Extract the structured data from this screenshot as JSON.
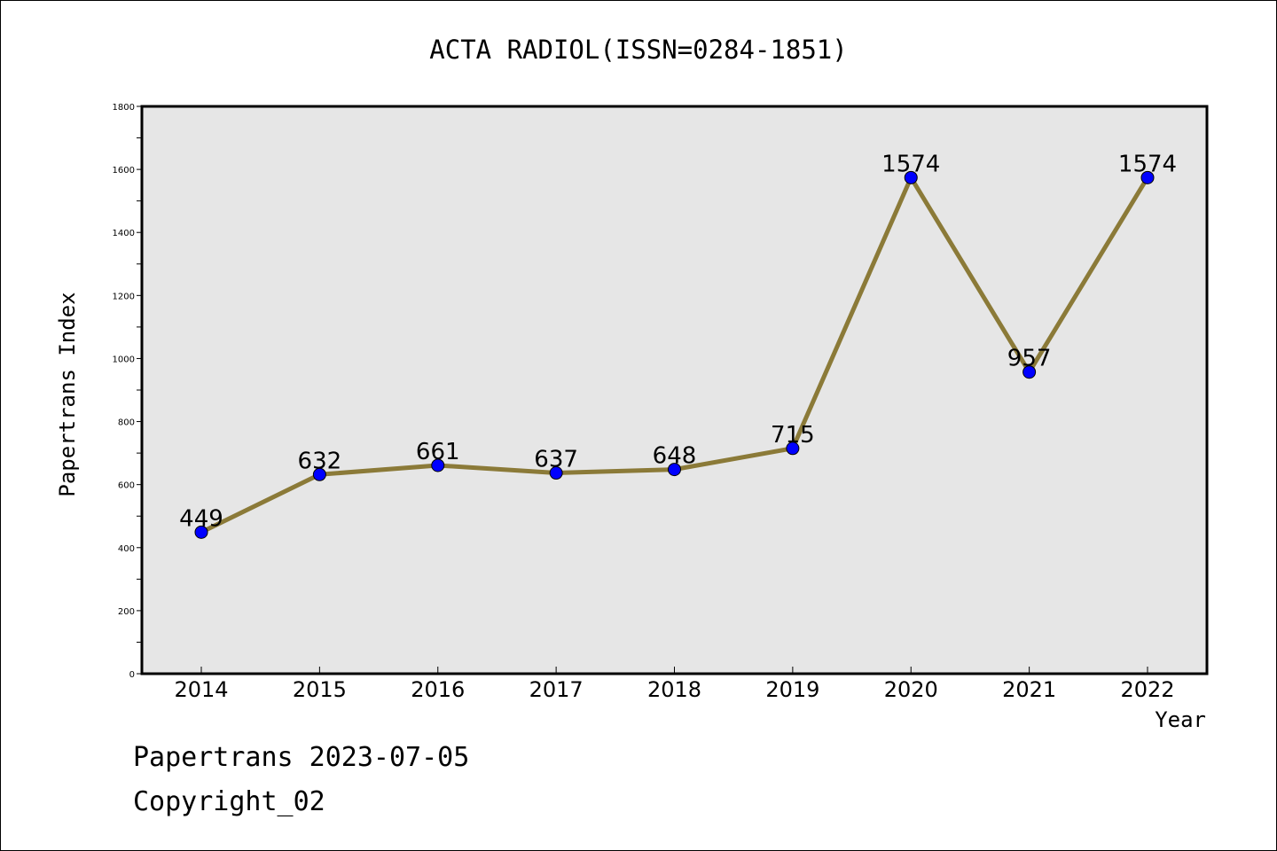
{
  "footer": {
    "line1": "Papertrans 2023-07-05",
    "line2": "Copyright_02"
  },
  "chart_data": {
    "type": "line",
    "title": "ACTA RADIOL(ISSN=0284-1851)",
    "xlabel": "Year",
    "ylabel": "Papertrans Index",
    "categories": [
      "2014",
      "2015",
      "2016",
      "2017",
      "2018",
      "2019",
      "2020",
      "2021",
      "2022"
    ],
    "series": [
      {
        "values": [
          449,
          632,
          661,
          637,
          648,
          715,
          1574,
          957,
          1574
        ]
      }
    ],
    "ylim": [
      0,
      1800
    ],
    "yticks": [
      0,
      200,
      400,
      600,
      800,
      1000,
      1200,
      1400,
      1600,
      1800
    ],
    "grid": false,
    "legend": "none",
    "colors": {
      "line": "#8b7a38",
      "marker": "#0000ff",
      "plot_background": "#e6e6e6"
    }
  }
}
